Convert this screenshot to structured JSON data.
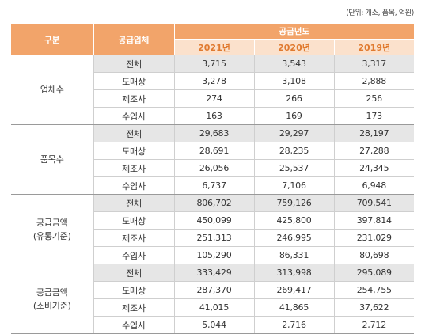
{
  "unit_note": "(단위: 개소, 품목, 억원)",
  "header": {
    "category": "구분",
    "supplier": "공급업체",
    "year_group": "공급년도",
    "years": [
      "2021년",
      "2020년",
      "2019년"
    ]
  },
  "groups": [
    {
      "label_lines": [
        "업체수"
      ],
      "rows": [
        {
          "sub": "전체",
          "values": [
            "3,715",
            "3,543",
            "3,317"
          ]
        },
        {
          "sub": "도매상",
          "values": [
            "3,278",
            "3,108",
            "2,888"
          ]
        },
        {
          "sub": "제조사",
          "values": [
            "274",
            "266",
            "256"
          ]
        },
        {
          "sub": "수입사",
          "values": [
            "163",
            "169",
            "173"
          ]
        }
      ]
    },
    {
      "label_lines": [
        "품목수"
      ],
      "rows": [
        {
          "sub": "전체",
          "values": [
            "29,683",
            "29,297",
            "28,197"
          ]
        },
        {
          "sub": "도매상",
          "values": [
            "28,691",
            "28,235",
            "27,288"
          ]
        },
        {
          "sub": "제조사",
          "values": [
            "26,056",
            "25,537",
            "24,345"
          ]
        },
        {
          "sub": "수입사",
          "values": [
            "6,737",
            "7,106",
            "6,948"
          ]
        }
      ]
    },
    {
      "label_lines": [
        "공급금액",
        "(유통기준)"
      ],
      "rows": [
        {
          "sub": "전체",
          "values": [
            "806,702",
            "759,126",
            "709,541"
          ]
        },
        {
          "sub": "도매상",
          "values": [
            "450,099",
            "425,800",
            "397,814"
          ]
        },
        {
          "sub": "제조사",
          "values": [
            "251,313",
            "246,995",
            "231,029"
          ]
        },
        {
          "sub": "수입사",
          "values": [
            "105,290",
            "86,331",
            "80,698"
          ]
        }
      ]
    },
    {
      "label_lines": [
        "공급금액",
        "(소비기준)"
      ],
      "rows": [
        {
          "sub": "전체",
          "values": [
            "333,429",
            "313,998",
            "295,089"
          ]
        },
        {
          "sub": "도매상",
          "values": [
            "287,370",
            "269,417",
            "254,755"
          ]
        },
        {
          "sub": "제조사",
          "values": [
            "41,015",
            "41,865",
            "37,622"
          ]
        },
        {
          "sub": "수입사",
          "values": [
            "5,044",
            "2,716",
            "2,712"
          ]
        }
      ]
    }
  ]
}
